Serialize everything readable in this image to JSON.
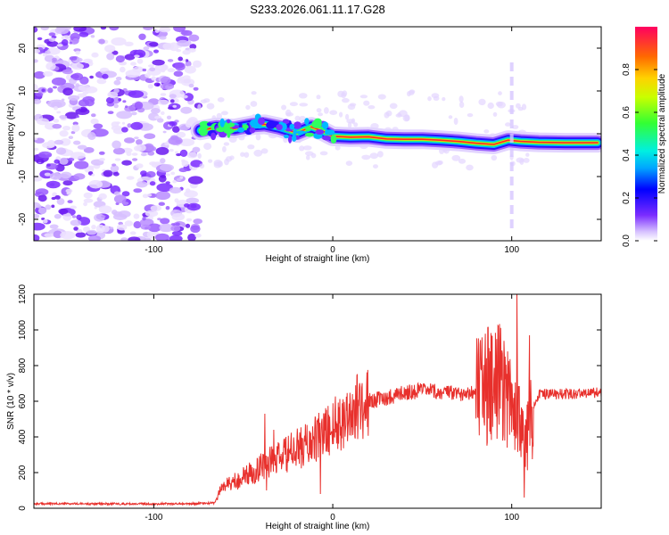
{
  "title": "S233.2026.061.11.17.G28",
  "chart_data": [
    {
      "type": "heatmap",
      "xlabel": "Height of straight line (km)",
      "ylabel": "Frequency (Hz)",
      "xlim": [
        -167,
        150
      ],
      "ylim": [
        -25,
        25
      ],
      "xticks": [
        "-100",
        "0",
        "100"
      ],
      "yticks": [
        "20",
        "10",
        "0",
        "-10",
        "-20"
      ],
      "colorbar": {
        "label": "Normalized spectral amplitude",
        "range": [
          0,
          1
        ],
        "ticks": [
          "0.0",
          "0.2",
          "0.4",
          "0.6",
          "0.8"
        ]
      },
      "noise_region_x": [
        -167,
        -75
      ],
      "ridge": {
        "x": [
          -74,
          -65,
          -55,
          -45,
          -38,
          -30,
          -20,
          -12,
          -5,
          0,
          10,
          20,
          30,
          40,
          50,
          60,
          70,
          80,
          90,
          98,
          105,
          115,
          130,
          148
        ],
        "y": [
          0.8,
          1.5,
          1.2,
          2.0,
          2.2,
          1.5,
          0.2,
          1.6,
          0.5,
          -0.6,
          -0.8,
          -0.7,
          -1.2,
          -1.3,
          -1.3,
          -1.5,
          -1.8,
          -2.2,
          -2.5,
          -1.5,
          -1.8,
          -2.0,
          -2.1,
          -2.1
        ]
      }
    },
    {
      "type": "line",
      "xlabel": "Height of straight line (km)",
      "ylabel": "SNR (10 * v/v)",
      "xlim": [
        -167,
        150
      ],
      "ylim": [
        0,
        1200
      ],
      "xticks": [
        "-100",
        "0",
        "100"
      ],
      "yticks": [
        "0",
        "200",
        "400",
        "600",
        "800",
        "1000",
        "1200"
      ],
      "color": "#e8302c",
      "series": [
        {
          "name": "SNR",
          "x": [
            -167,
            -150,
            -120,
            -100,
            -80,
            -66,
            -62,
            -55,
            -45,
            -38,
            -30,
            -20,
            -10,
            0,
            10,
            20,
            30,
            40,
            50,
            60,
            70,
            80,
            88,
            95,
            100,
            104,
            107,
            110,
            115,
            130,
            150
          ],
          "y": [
            25,
            25,
            25,
            25,
            25,
            30,
            120,
            150,
            200,
            250,
            280,
            330,
            380,
            460,
            540,
            600,
            620,
            650,
            660,
            650,
            640,
            660,
            680,
            700,
            620,
            580,
            300,
            500,
            640,
            640,
            650
          ]
        }
      ],
      "spikes": [
        {
          "x": -38,
          "y": 530
        },
        {
          "x": -37,
          "y": 100
        },
        {
          "x": -33,
          "y": 440
        },
        {
          "x": -20,
          "y": 380
        },
        {
          "x": -7,
          "y": 80
        },
        {
          "x": 88,
          "y": 880
        },
        {
          "x": 103,
          "y": 1200
        },
        {
          "x": 107,
          "y": 60
        },
        {
          "x": 110,
          "y": 970
        }
      ]
    }
  ]
}
